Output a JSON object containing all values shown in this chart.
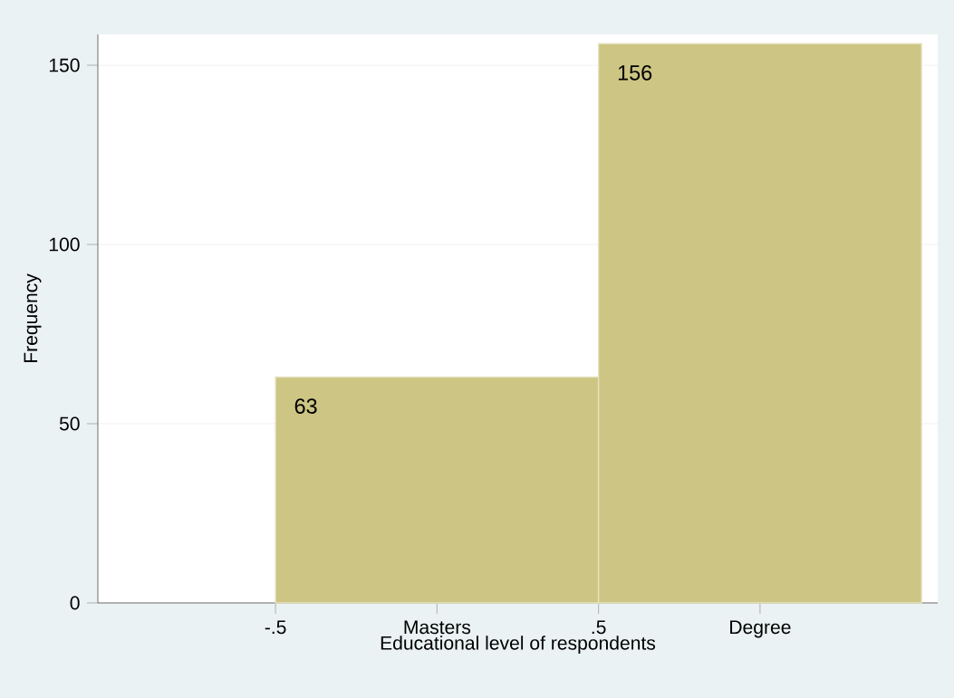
{
  "chart_data": {
    "type": "histogram",
    "xlabel": "Educational level of respondents",
    "ylabel": "Frequency",
    "bins": [
      -0.5,
      0.5,
      1.5
    ],
    "values": [
      63,
      156
    ],
    "color": "#cdc583",
    "xlim": [
      -1.05,
      1.55
    ],
    "ylim": [
      0,
      158.6
    ],
    "xticks": [
      {
        "value": -0.5,
        "label": "-.5"
      },
      {
        "value": 0,
        "label": "Masters"
      },
      {
        "value": 0.5,
        "label": ".5"
      },
      {
        "value": 1,
        "label": "Degree"
      }
    ],
    "yticks": [
      0,
      50,
      100,
      150
    ],
    "grid": "y",
    "data_labels": true
  }
}
